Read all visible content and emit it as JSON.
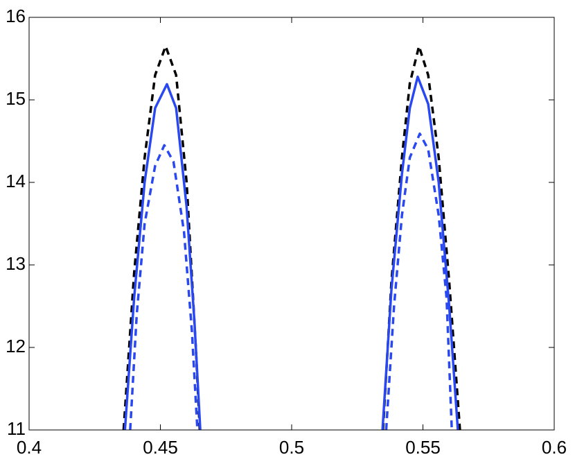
{
  "chart_data": {
    "type": "line",
    "xlim": [
      0.4,
      0.6
    ],
    "ylim": [
      11,
      16
    ],
    "xticks": [
      0.4,
      0.45,
      0.5,
      0.55,
      0.6
    ],
    "yticks": [
      11,
      12,
      13,
      14,
      15,
      16
    ],
    "grid": false,
    "box": true,
    "series": [
      {
        "color": "#000000",
        "dash": true,
        "x": [
          0.436,
          0.44,
          0.444,
          0.448,
          0.452,
          0.456,
          0.46,
          0.4635,
          0.465,
          0.5,
          0.5348,
          0.538,
          0.542,
          0.545,
          0.5485,
          0.552,
          0.556,
          0.56,
          0.5641
        ],
        "values": [
          11,
          12.9,
          14.3,
          15.3,
          15.65,
          15.3,
          14.0,
          12.0,
          11,
          null,
          11,
          12.8,
          14.3,
          15.2,
          15.65,
          15.3,
          14.3,
          12.8,
          11
        ]
      },
      {
        "color": "#2a48f0",
        "dash": false,
        "x": [
          0.4365,
          0.44,
          0.444,
          0.448,
          0.4525,
          0.456,
          0.46,
          0.463,
          0.4652,
          0.5,
          0.5346,
          0.538,
          0.542,
          0.545,
          0.548,
          0.552,
          0.556,
          0.56,
          0.5633
        ],
        "values": [
          11,
          12.6,
          14.0,
          14.9,
          15.19,
          14.9,
          13.7,
          12.3,
          11,
          null,
          11,
          12.7,
          14.1,
          14.9,
          15.28,
          14.95,
          14.0,
          12.5,
          11
        ]
      },
      {
        "color": "#2a48f0",
        "dash": true,
        "x": [
          0.4385,
          0.441,
          0.444,
          0.448,
          0.4515,
          0.455,
          0.459,
          0.462,
          0.4641,
          0.5,
          0.536,
          0.539,
          0.542,
          0.545,
          0.5488,
          0.552,
          0.556,
          0.559,
          0.561
        ],
        "values": [
          11,
          12.4,
          13.5,
          14.2,
          14.45,
          14.25,
          13.4,
          12.2,
          11,
          null,
          11,
          12.5,
          13.6,
          14.3,
          14.59,
          14.4,
          13.6,
          12.6,
          11
        ]
      }
    ]
  }
}
